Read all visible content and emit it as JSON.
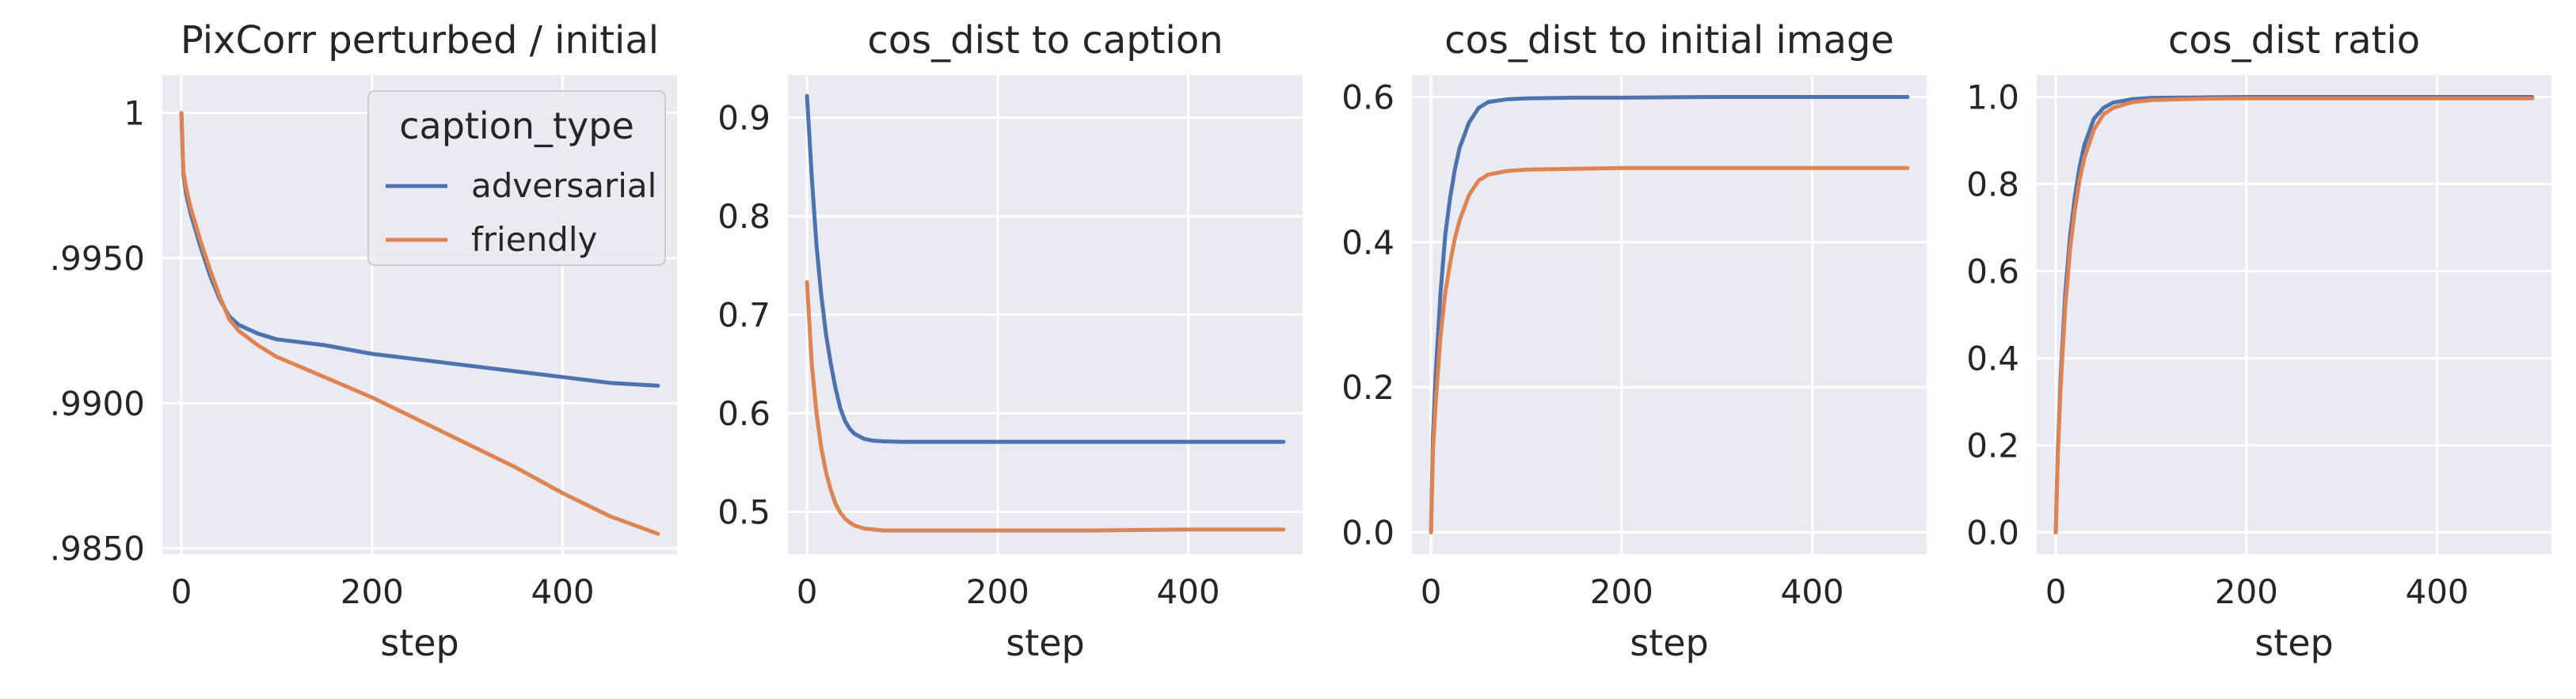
{
  "chart_data": [
    {
      "type": "line",
      "title": "PixCorr perturbed / initial",
      "xlabel": "step",
      "ylabel": "",
      "xlim": [
        -20,
        520
      ],
      "ylim": [
        0.9848,
        1.0013
      ],
      "xticks": [
        0,
        200,
        400
      ],
      "xtick_labels": [
        "0",
        "200",
        "400"
      ],
      "yticks": [
        0.985,
        0.99,
        0.995,
        1.0
      ],
      "ytick_labels": [
        ".9850",
        ".9900",
        ".9950",
        "1"
      ],
      "grid": true,
      "legend": {
        "title": "caption_type",
        "placement": "top-right",
        "entries": [
          "adversarial",
          "friendly"
        ]
      },
      "series": [
        {
          "name": "adversarial",
          "color": "#4C72B0",
          "x": [
            0,
            2,
            5,
            10,
            20,
            30,
            40,
            50,
            60,
            80,
            100,
            150,
            200,
            250,
            300,
            350,
            400,
            450,
            500
          ],
          "y": [
            1.0,
            0.9979,
            0.9972,
            0.9965,
            0.9954,
            0.9944,
            0.9936,
            0.993,
            0.9927,
            0.9924,
            0.9922,
            0.992,
            0.9917,
            0.9915,
            0.9913,
            0.9911,
            0.9909,
            0.9907,
            0.9906
          ]
        },
        {
          "name": "friendly",
          "color": "#DD8452",
          "x": [
            0,
            2,
            5,
            10,
            20,
            30,
            40,
            50,
            60,
            80,
            100,
            150,
            200,
            250,
            300,
            350,
            400,
            450,
            500
          ],
          "y": [
            1.0,
            0.998,
            0.9974,
            0.9967,
            0.9956,
            0.9946,
            0.9937,
            0.9929,
            0.9925,
            0.992,
            0.9916,
            0.9909,
            0.9902,
            0.9894,
            0.9886,
            0.9878,
            0.9869,
            0.9861,
            0.9855
          ]
        }
      ]
    },
    {
      "type": "line",
      "title": "cos_dist to caption",
      "xlabel": "step",
      "ylabel": "",
      "xlim": [
        -20,
        520
      ],
      "ylim": [
        0.457,
        0.943
      ],
      "xticks": [
        0,
        200,
        400
      ],
      "xtick_labels": [
        "0",
        "200",
        "400"
      ],
      "yticks": [
        0.5,
        0.6,
        0.7,
        0.8,
        0.9
      ],
      "ytick_labels": [
        "0.5",
        "0.6",
        "0.7",
        "0.8",
        "0.9"
      ],
      "grid": true,
      "series": [
        {
          "name": "adversarial",
          "color": "#4C72B0",
          "x": [
            0,
            5,
            10,
            15,
            20,
            25,
            30,
            35,
            40,
            45,
            50,
            60,
            70,
            80,
            100,
            150,
            200,
            300,
            400,
            500
          ],
          "y": [
            0.922,
            0.84,
            0.77,
            0.72,
            0.68,
            0.65,
            0.625,
            0.605,
            0.592,
            0.584,
            0.579,
            0.574,
            0.572,
            0.5715,
            0.571,
            0.571,
            0.571,
            0.571,
            0.571,
            0.571
          ]
        },
        {
          "name": "friendly",
          "color": "#DD8452",
          "x": [
            0,
            5,
            10,
            15,
            20,
            25,
            30,
            35,
            40,
            45,
            50,
            60,
            70,
            80,
            100,
            150,
            200,
            300,
            400,
            500
          ],
          "y": [
            0.733,
            0.65,
            0.6,
            0.565,
            0.54,
            0.522,
            0.508,
            0.499,
            0.493,
            0.489,
            0.486,
            0.483,
            0.482,
            0.481,
            0.481,
            0.481,
            0.481,
            0.481,
            0.482,
            0.482
          ]
        }
      ]
    },
    {
      "type": "line",
      "title": "cos_dist to initial image",
      "xlabel": "step",
      "ylabel": "",
      "xlim": [
        -20,
        520
      ],
      "ylim": [
        -0.03,
        0.63
      ],
      "xticks": [
        0,
        200,
        400
      ],
      "xtick_labels": [
        "0",
        "200",
        "400"
      ],
      "yticks": [
        0.0,
        0.2,
        0.4,
        0.6
      ],
      "ytick_labels": [
        "0.0",
        "0.2",
        "0.4",
        "0.6"
      ],
      "grid": true,
      "series": [
        {
          "name": "adversarial",
          "color": "#4C72B0",
          "x": [
            0,
            2,
            5,
            10,
            15,
            20,
            25,
            30,
            40,
            50,
            60,
            80,
            100,
            150,
            200,
            300,
            400,
            500
          ],
          "y": [
            0.0,
            0.13,
            0.22,
            0.33,
            0.41,
            0.46,
            0.5,
            0.53,
            0.565,
            0.585,
            0.593,
            0.597,
            0.598,
            0.599,
            0.599,
            0.6,
            0.6,
            0.6
          ]
        },
        {
          "name": "friendly",
          "color": "#DD8452",
          "x": [
            0,
            2,
            5,
            10,
            15,
            20,
            25,
            30,
            40,
            50,
            60,
            80,
            100,
            150,
            200,
            300,
            400,
            500
          ],
          "y": [
            0.0,
            0.11,
            0.18,
            0.27,
            0.33,
            0.37,
            0.405,
            0.43,
            0.465,
            0.485,
            0.493,
            0.498,
            0.5,
            0.501,
            0.502,
            0.502,
            0.502,
            0.502
          ]
        }
      ]
    },
    {
      "type": "line",
      "title": "cos_dist ratio",
      "xlabel": "step",
      "ylabel": "",
      "xlim": [
        -20,
        520
      ],
      "ylim": [
        -0.05,
        1.05
      ],
      "xticks": [
        0,
        200,
        400
      ],
      "xtick_labels": [
        "0",
        "200",
        "400"
      ],
      "yticks": [
        0.0,
        0.2,
        0.4,
        0.6,
        0.8,
        1.0
      ],
      "ytick_labels": [
        "0.0",
        "0.2",
        "0.4",
        "0.6",
        "0.8",
        "1.0"
      ],
      "grid": true,
      "series": [
        {
          "name": "adversarial",
          "color": "#4C72B0",
          "x": [
            0,
            2,
            5,
            10,
            15,
            20,
            25,
            30,
            40,
            50,
            60,
            80,
            100,
            150,
            200,
            300,
            400,
            500
          ],
          "y": [
            0.0,
            0.18,
            0.35,
            0.55,
            0.68,
            0.77,
            0.84,
            0.89,
            0.95,
            0.975,
            0.987,
            0.995,
            0.998,
            0.999,
            1.0,
            1.0,
            1.0,
            1.0
          ]
        },
        {
          "name": "friendly",
          "color": "#DD8452",
          "x": [
            0,
            2,
            5,
            10,
            15,
            20,
            25,
            30,
            40,
            50,
            60,
            80,
            100,
            150,
            200,
            300,
            400,
            500
          ],
          "y": [
            0.0,
            0.17,
            0.33,
            0.52,
            0.65,
            0.74,
            0.81,
            0.86,
            0.925,
            0.96,
            0.975,
            0.988,
            0.993,
            0.996,
            0.997,
            0.997,
            0.997,
            0.997
          ]
        }
      ]
    }
  ]
}
